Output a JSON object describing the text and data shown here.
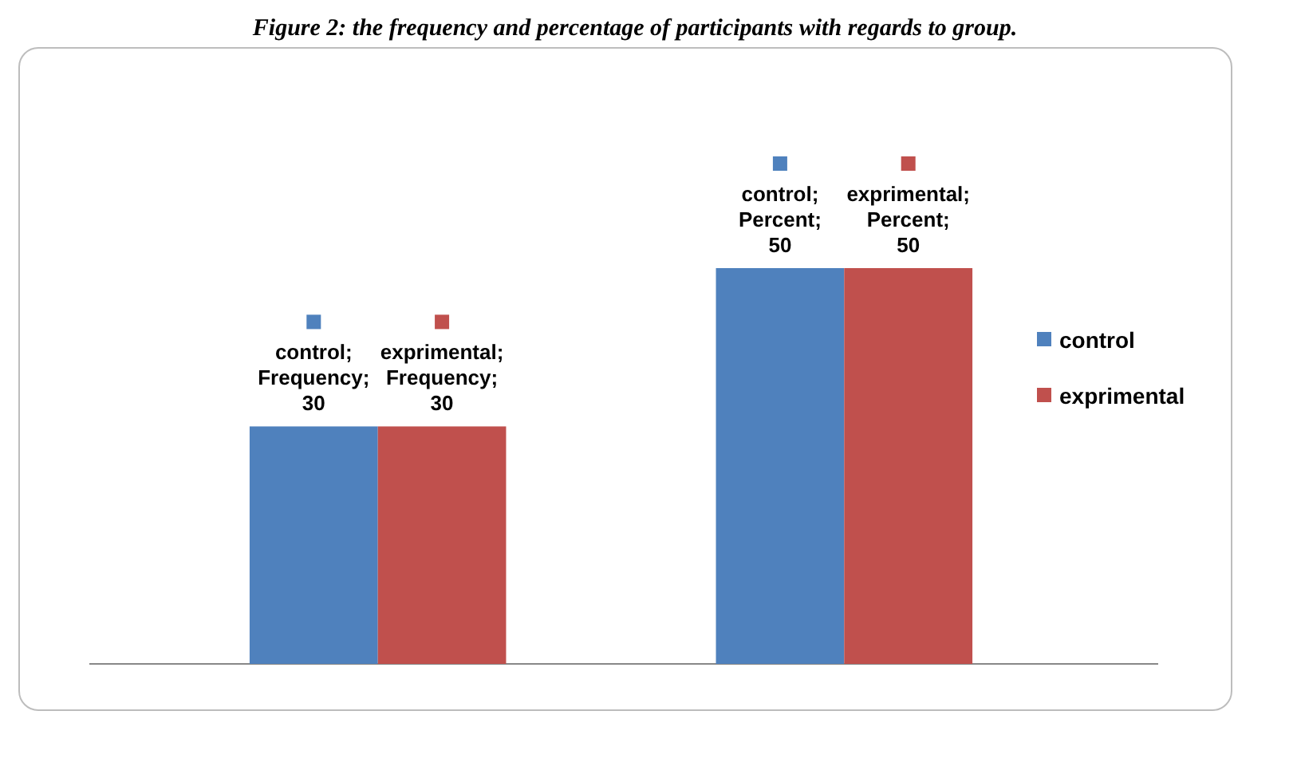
{
  "chart_data": {
    "type": "bar",
    "title": "Figure 2: the frequency and percentage of participants with regards to group.",
    "categories": [
      null,
      null
    ],
    "legend": "right",
    "series": [
      {
        "name": "control",
        "color": "#4f81bd",
        "values": [
          30,
          50
        ],
        "value_labels": [
          "control; Frequency; 30",
          "control; Percent; 50"
        ]
      },
      {
        "name": "exprimental",
        "color": "#c0504d",
        "values": [
          30,
          50
        ],
        "value_labels": [
          "exprimental; Frequency; 30",
          "exprimental; Percent; 50"
        ]
      }
    ]
  }
}
